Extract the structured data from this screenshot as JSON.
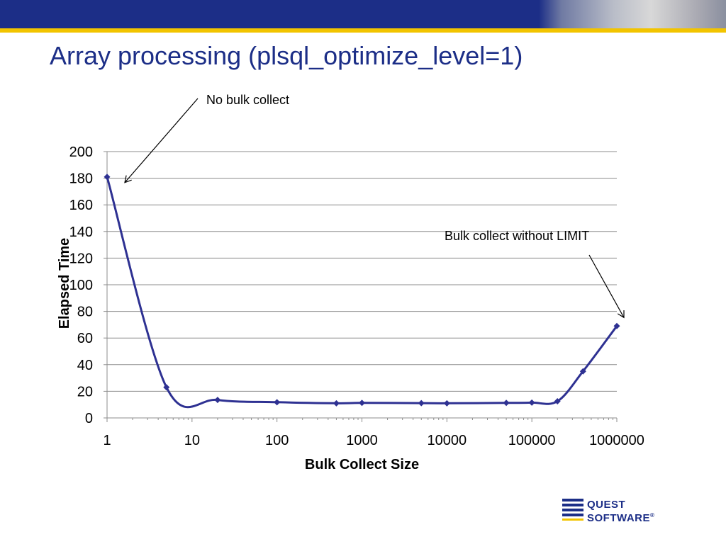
{
  "slide": {
    "title": "Array processing (plsql_optimize_level=1)",
    "colors": {
      "banner": "#1c2e87",
      "stripe": "#f2c400",
      "series": "#2e3192",
      "grid": "#8c8c8c"
    }
  },
  "logo": {
    "line1": "QUEST",
    "line2": "SOFTWARE",
    "mark": "®",
    "icon": "quest-q-icon"
  },
  "chart_data": {
    "type": "scatter",
    "title": "",
    "xlabel": "Bulk Collect Size",
    "ylabel": "Elapsed Time",
    "x_scale": "log",
    "xlim": [
      1,
      1000000
    ],
    "ylim": [
      0,
      200
    ],
    "xticks": [
      "1",
      "10",
      "100",
      "1000",
      "10000",
      "100000",
      "1000000"
    ],
    "yticks": [
      0,
      20,
      40,
      60,
      80,
      100,
      120,
      140,
      160,
      180,
      200
    ],
    "grid": true,
    "legend": "none",
    "smooth": true,
    "series": [
      {
        "x": [
          1,
          5,
          20,
          100,
          500,
          1000,
          5000,
          10000,
          50000,
          100000,
          200000,
          400000,
          1000000
        ],
        "y": [
          181,
          23,
          13.5,
          11.8,
          11,
          11.3,
          11.1,
          11,
          11.3,
          11.5,
          12.5,
          35,
          69
        ]
      }
    ],
    "annotations": [
      {
        "text": "No bulk collect",
        "points_to": {
          "x": 1,
          "y": 181
        }
      },
      {
        "text": "Bulk collect without LIMIT",
        "points_to": {
          "x": 1000000,
          "y": 69
        }
      }
    ]
  }
}
